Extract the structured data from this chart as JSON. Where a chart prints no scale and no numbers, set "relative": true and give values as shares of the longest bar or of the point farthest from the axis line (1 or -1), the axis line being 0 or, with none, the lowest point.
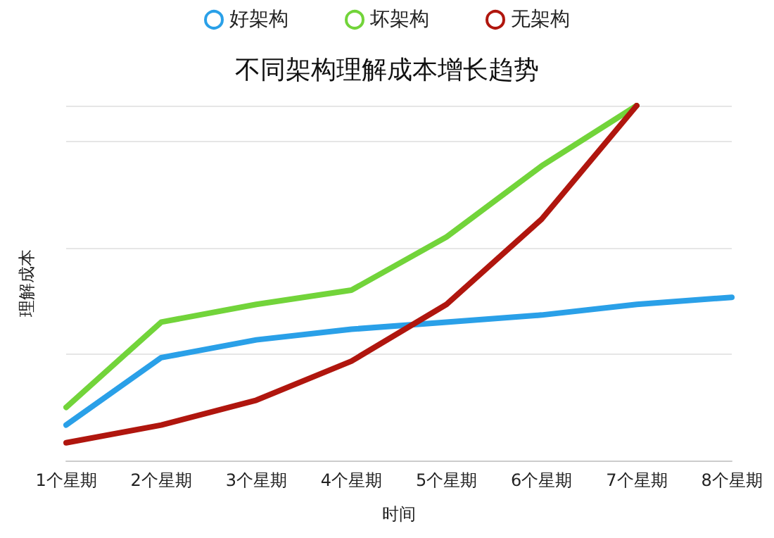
{
  "chart_data": {
    "type": "line",
    "title": "不同架构理解成本增长趋势",
    "xlabel": "时间",
    "ylabel": "理解成本",
    "categories": [
      "1个星期",
      "2个星期",
      "3个星期",
      "4个星期",
      "5个星期",
      "6个星期",
      "7个星期",
      "8个星期"
    ],
    "relative": true,
    "grid": "y",
    "legend": "top",
    "marker": "none",
    "line_style": "solid",
    "series": [
      {
        "name": "好架构",
        "color": "#2aa0e8",
        "values": [
          0.1,
          0.29,
          0.34,
          0.37,
          0.39,
          0.41,
          0.44,
          0.46
        ]
      },
      {
        "name": "坏架构",
        "color": "#72d43a",
        "values": [
          0.15,
          0.39,
          0.44,
          0.48,
          0.63,
          0.83,
          1,
          null
        ]
      },
      {
        "name": "无架构",
        "color": "#b0160e",
        "values": [
          0.05,
          0.1,
          0.17,
          0.28,
          0.44,
          0.68,
          1,
          null
        ]
      }
    ]
  }
}
